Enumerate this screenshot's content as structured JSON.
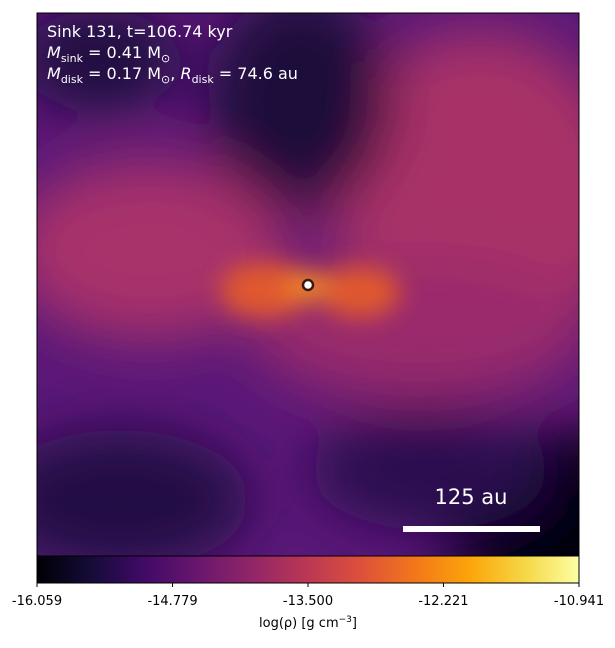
{
  "chart_data": {
    "type": "density-map",
    "annotation_lines": [
      {
        "text": "Sink 131, t=106.74 kyr"
      },
      {
        "symbol": "M",
        "subscript": "sink",
        "text": " = 0.41 M",
        "unit_subscript": "⊙"
      },
      {
        "symbol": "M",
        "subscript": "disk",
        "text": " = 0.17 M",
        "unit_subscript": "⊙",
        "text2": ", ",
        "symbol2": "R",
        "subscript2": "disk",
        "text3": " = 74.6 au"
      }
    ],
    "scale_bar_label": "125 au",
    "colorbar": {
      "colormap": "inferno",
      "clim": [
        -16.059,
        -10.941
      ],
      "ticks": [
        {
          "value": -16.059,
          "label": "-16.059"
        },
        {
          "value": -14.779,
          "label": "-14.779"
        },
        {
          "value": -13.5,
          "label": "-13.500"
        },
        {
          "value": -12.221,
          "label": "-12.221"
        },
        {
          "value": -10.941,
          "label": "-10.941"
        }
      ],
      "label": "log(ρ) [g cm",
      "label_superscript": "−3",
      "label_end": "]"
    }
  }
}
